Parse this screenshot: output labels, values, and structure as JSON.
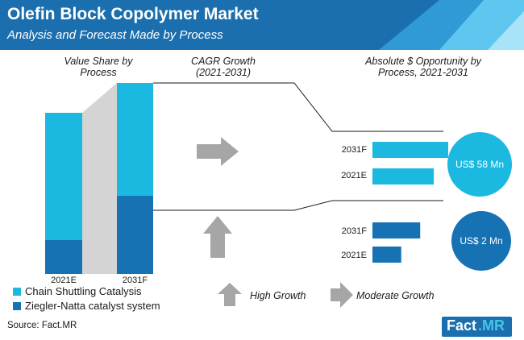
{
  "header": {
    "title": "Olefin Block Copolymer Market",
    "subtitle": "Analysis and Forecast Made by Process"
  },
  "sections": {
    "value_share": "Value Share by\nProcess",
    "cagr": "CAGR Growth\n(2021-2031)",
    "opportunity": "Absolute $ Opportunity by\nProcess, 2021-2031"
  },
  "legend": {
    "items": [
      {
        "label": "Chain Shuttling Catalysis",
        "color": "#1bb8e0"
      },
      {
        "label": "Ziegler-Natta catalyst system",
        "color": "#1672b3"
      }
    ]
  },
  "growth_legend": {
    "high": "High Growth",
    "moderate": "Moderate Growth"
  },
  "opportunity": {
    "chain": {
      "bubble": "US$ 58 Mn",
      "labels": [
        "2031F",
        "2021E"
      ]
    },
    "ziegler": {
      "bubble": "US$ 2 Mn",
      "labels": [
        "2031F",
        "2021E"
      ]
    }
  },
  "source": "Source: Fact.MR",
  "logo": {
    "fact": "Fact",
    "mr": ".MR"
  },
  "colors": {
    "header": "#1b6fae",
    "chain": "#1bb8e0",
    "ziegler": "#1672b3",
    "arrow": "#a6a6a6",
    "connector": "#d4d4d4"
  },
  "chart_data": [
    {
      "type": "bar",
      "title": "Value Share by Process",
      "categories": [
        "2021E",
        "2031F"
      ],
      "stacked": true,
      "series": [
        {
          "name": "Chain Shuttling Catalysis",
          "values": [
            79,
            59
          ]
        },
        {
          "name": "Ziegler-Natta catalyst system",
          "values": [
            21,
            41
          ]
        }
      ],
      "ylim": [
        0,
        100
      ]
    },
    {
      "type": "bar",
      "title": "Absolute $ Opportunity by Process, 2021-2031",
      "orientation": "horizontal",
      "categories": [
        "2031F",
        "2021E"
      ],
      "series": [
        {
          "name": "Chain Shuttling Catalysis",
          "values": [
            100,
            81
          ]
        },
        {
          "name": "Ziegler-Natta catalyst system",
          "values": [
            63,
            38
          ]
        }
      ]
    }
  ]
}
